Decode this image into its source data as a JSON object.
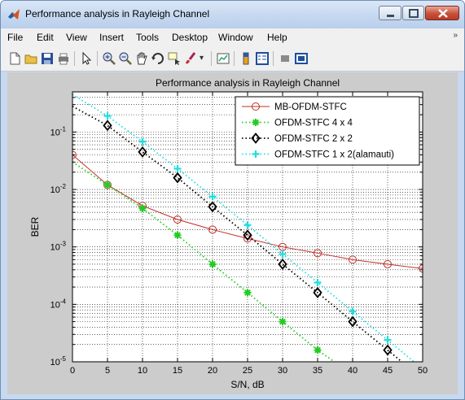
{
  "window": {
    "title": "Performance analysis in Rayleigh Channel"
  },
  "menu": [
    "File",
    "Edit",
    "View",
    "Insert",
    "Tools",
    "Desktop",
    "Window",
    "Help"
  ],
  "menu_overflow": "»",
  "toolbar_icons": [
    "new-figure-icon",
    "open-file-icon",
    "save-icon",
    "print-icon",
    "pointer-icon",
    "zoom-in-icon",
    "zoom-out-icon",
    "pan-icon",
    "rotate-3d-icon",
    "data-cursor-icon",
    "brush-icon",
    "link-plot-icon",
    "colorbar-icon",
    "legend-icon",
    "hide-plot-tools-icon",
    "show-plot-tools-icon"
  ],
  "colors": {
    "mb": "#c0302a",
    "stfc44": "#22cc22",
    "stfc22": "#000000",
    "stfc12": "#22dddd",
    "figure_bg": "#cccccc"
  },
  "chart_data": {
    "type": "line",
    "title": "Performance analysis in Rayleigh Channel",
    "xlabel": "S/N, dB",
    "ylabel": "BER",
    "xlim": [
      0,
      50
    ],
    "ylim": [
      1e-05,
      0.5
    ],
    "yscale": "log",
    "grid": true,
    "legend_position": "top-right",
    "x_ticks": [
      "0",
      "5",
      "10",
      "15",
      "20",
      "25",
      "30",
      "35",
      "40",
      "45",
      "50"
    ],
    "y_ticks": [
      {
        "base": "10",
        "exp": "-5",
        "value": 1e-05
      },
      {
        "base": "10",
        "exp": "-4",
        "value": 0.0001
      },
      {
        "base": "10",
        "exp": "-3",
        "value": 0.001
      },
      {
        "base": "10",
        "exp": "-2",
        "value": 0.01
      },
      {
        "base": "10",
        "exp": "-1",
        "value": 0.1
      }
    ],
    "series": [
      {
        "name": "MB-OFDM-STFC",
        "marker": "circle",
        "style": "solid",
        "color": "#c0302a",
        "x": [
          0,
          5,
          10,
          15,
          20,
          25,
          30,
          35,
          40,
          45,
          50
        ],
        "y": [
          0.04,
          0.012,
          0.0052,
          0.003,
          0.002,
          0.0014,
          0.001,
          0.00078,
          0.0006,
          0.0005,
          0.00042
        ]
      },
      {
        "name": "OFDM-STFC 4 x 4",
        "marker": "star",
        "style": "dotted",
        "color": "#22cc22",
        "x": [
          0,
          5,
          10,
          15,
          20,
          25,
          30,
          35,
          40
        ],
        "y": [
          0.03,
          0.012,
          0.0047,
          0.0016,
          0.0005,
          0.00016,
          5e-05,
          1.6e-05,
          6e-06
        ]
      },
      {
        "name": "OFDM-STFC 2 x 2",
        "marker": "diamond",
        "style": "dotted",
        "color": "#000000",
        "x": [
          0,
          5,
          10,
          15,
          20,
          25,
          30,
          35,
          40,
          45,
          50
        ],
        "y": [
          0.28,
          0.13,
          0.045,
          0.016,
          0.005,
          0.0016,
          0.0005,
          0.00016,
          5e-05,
          1.6e-05,
          5e-06
        ]
      },
      {
        "name": "OFDM-STFC 1 x 2(alamauti)",
        "marker": "plus",
        "style": "dotted",
        "color": "#22dddd",
        "x": [
          0,
          5,
          10,
          15,
          20,
          25,
          30,
          35,
          40,
          45,
          50
        ],
        "y": [
          0.45,
          0.19,
          0.068,
          0.023,
          0.0075,
          0.0024,
          0.00075,
          0.00024,
          7.5e-05,
          2.4e-05,
          7.5e-06
        ]
      }
    ]
  }
}
